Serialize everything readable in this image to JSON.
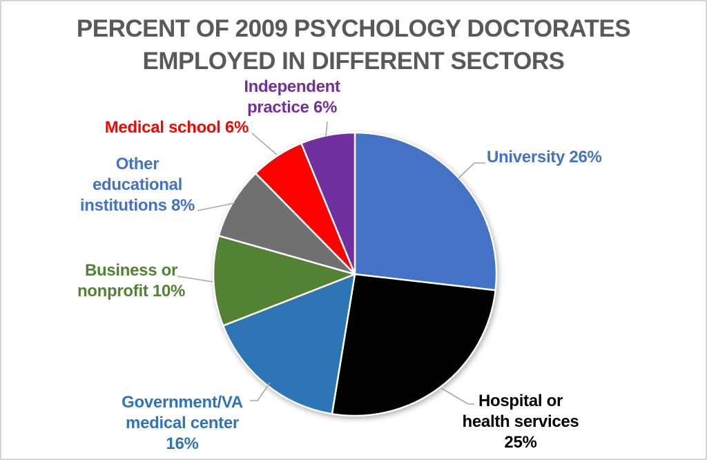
{
  "title": {
    "line1": "PERCENT OF 2009 PSYCHOLOGY DOCTORATES",
    "line2": "EMPLOYED IN DIFFERENT SECTORS",
    "color": "#595959"
  },
  "chart_data": {
    "type": "pie",
    "title": "PERCENT OF 2009 PSYCHOLOGY DOCTORATES EMPLOYED IN DIFFERENT SECTORS",
    "unit": "%",
    "start_angle_deg": 0,
    "direction": "clockwise",
    "legend": "none",
    "labels_position": "outside-with-leader-lines",
    "leader_line_color": "#A6A6A6",
    "separator_color": "#FFFFFF",
    "background": "#FFFFFF",
    "border_color": "#D5D5D8",
    "slices": [
      {
        "label": "University",
        "value": 26,
        "color": "#4472C4",
        "label_color": "#4472C4",
        "label_text": "University 26%",
        "label_lines": [
          "University 26%"
        ]
      },
      {
        "label": "Hospital or health services",
        "value": 25,
        "color": "#000000",
        "label_color": "#000000",
        "label_text": "Hospital or health services 25%",
        "label_lines": [
          "Hospital or",
          "health services",
          "25%"
        ]
      },
      {
        "label": "Government/VA medical center",
        "value": 16,
        "color": "#2E75B6",
        "label_color": "#2E75B6",
        "label_text": "Government/VA medical center 16%",
        "label_lines": [
          "Government/VA",
          "medical center",
          "16%"
        ]
      },
      {
        "label": "Business or nonprofit",
        "value": 10,
        "color": "#548235",
        "label_color": "#548235",
        "label_text": "Business or nonprofit 10%",
        "label_lines": [
          "Business or",
          "nonprofit 10%"
        ]
      },
      {
        "label": "Other educational institutions",
        "value": 8,
        "color": "#707070",
        "label_color": "#4472C4",
        "label_text": "Other educational institutions 8%",
        "label_lines": [
          "Other",
          "educational",
          "institutions 8%"
        ]
      },
      {
        "label": "Medical school",
        "value": 6,
        "color": "#FF0000",
        "label_color": "#FF0000",
        "label_text": "Medical school 6%",
        "label_lines": [
          "Medical school 6%"
        ]
      },
      {
        "label": "Independent practice",
        "value": 6,
        "color": "#7030A0",
        "label_color": "#7030A0",
        "label_text": "Independent practice 6%",
        "label_lines": [
          "Independent",
          "practice 6%"
        ]
      }
    ]
  }
}
